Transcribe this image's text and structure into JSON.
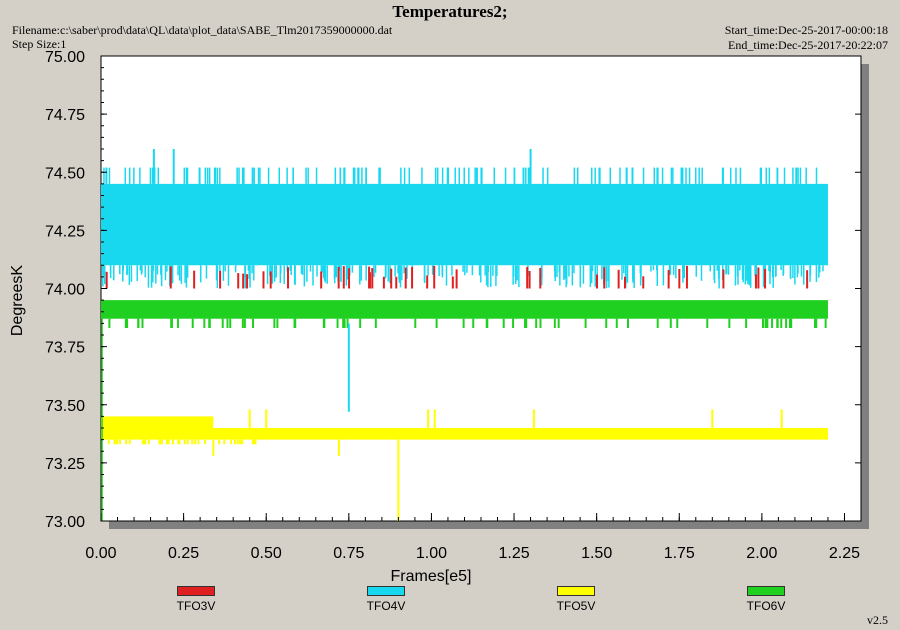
{
  "header": {
    "title": "Temperatures2;",
    "filename": "Filename:c:\\saber\\prod\\data\\QL\\data\\plot_data\\SABE_Tlm2017359000000.dat",
    "step_size": "Step Size:1",
    "start_time": "Start_time:Dec-25-2017-00:00:18",
    "end_time": "End_time:Dec-25-2017-20:22:07"
  },
  "version": "v2.5",
  "colors": {
    "TFO3V": "#e02020",
    "TFO4V": "#18d8f0",
    "TFO5V": "#ffff00",
    "TFO6V": "#20d020",
    "plot_bg": "#ffffff",
    "window_bg": "#d4d0c8"
  },
  "chart_data": {
    "type": "line",
    "title": "Temperatures2;",
    "xlabel": "Frames[e5]",
    "ylabel": "DegreesK",
    "xlim": [
      0.0,
      2.3
    ],
    "ylim": [
      73.0,
      75.0
    ],
    "x_ticks": [
      "0.00",
      "0.25",
      "0.50",
      "0.75",
      "1.00",
      "1.25",
      "1.50",
      "1.75",
      "2.00",
      "2.25"
    ],
    "y_ticks": [
      "73.00",
      "73.25",
      "73.50",
      "73.75",
      "74.00",
      "74.25",
      "74.50",
      "74.75",
      "75.00"
    ],
    "grid": false,
    "legend_position": "bottom",
    "series": [
      {
        "name": "TFO3V",
        "x_range": [
          0.0,
          2.2
        ],
        "band": [
          74.0,
          74.1
        ],
        "typical_low": 74.0,
        "typical_high": 74.1
      },
      {
        "name": "TFO4V",
        "x_range": [
          0.0,
          2.2
        ],
        "band": [
          74.0,
          74.5
        ],
        "typical_low": 74.1,
        "typical_high": 74.45,
        "spikes_high": [
          [
            0.16,
            74.6
          ],
          [
            0.22,
            74.6
          ],
          [
            1.3,
            74.6
          ]
        ],
        "dips": [
          [
            0.75,
            73.47
          ]
        ]
      },
      {
        "name": "TFO5V",
        "x_range": [
          0.0,
          2.2
        ],
        "band": [
          73.35,
          73.45
        ],
        "typical_low": 73.35,
        "typical_high": 73.4,
        "dips": [
          [
            0.9,
            73.0
          ],
          [
            0.72,
            73.28
          ],
          [
            0.34,
            73.28
          ]
        ]
      },
      {
        "name": "TFO6V",
        "x_range": [
          0.0,
          2.2
        ],
        "band": [
          73.85,
          73.95
        ],
        "typical_low": 73.87,
        "typical_high": 73.95
      }
    ]
  }
}
